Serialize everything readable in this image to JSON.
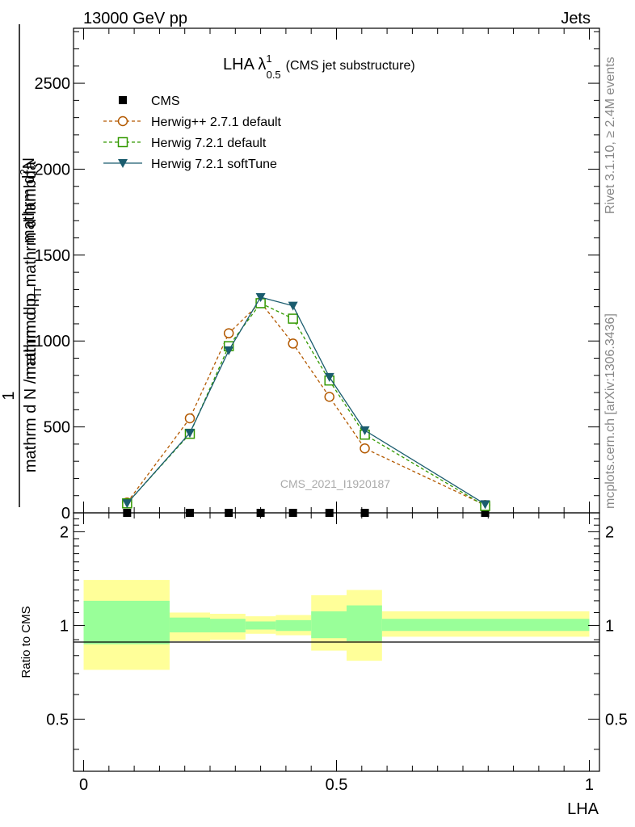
{
  "header": {
    "left": "13000 GeV pp",
    "right": "Jets"
  },
  "side": {
    "rivet": "Rivet 3.1.10, ≥ 2.4M events",
    "mcplots": "mcplots.cern.ch [arXiv:1306.3436]"
  },
  "chart_data": {
    "type": "line",
    "title": {
      "main": "LHA λ",
      "sup": "1",
      "sub": "0.5",
      "note": "(CMS jet substructure)"
    },
    "watermark": "CMS_2021_I1920187",
    "xlabel": "LHA",
    "ylabel": {
      "numerator": "1",
      "denominator": "mathrm d N / mathrm d p",
      "denominator_sub": "T",
      "top_numerator": "mathrm d",
      "top_numerator_sup": "2",
      "top_numerator_rest": "N",
      "top_denominator": "mathrm d p",
      "top_denominator_sub": "T",
      "top_denominator_rest": " mathrm d lambda"
    },
    "xlim": [
      -0.02,
      1.02
    ],
    "ylim": [
      0,
      2820
    ],
    "x_ticks": [
      "0",
      "0.5",
      "1"
    ],
    "y_ticks": [
      "0",
      "500",
      "1000",
      "1500",
      "2000",
      "2500"
    ],
    "legend_position": "top-left",
    "series": [
      {
        "name": "CMS",
        "color": "#000000",
        "marker": "square",
        "x": [
          0.086,
          0.21,
          0.287,
          0.35,
          0.414,
          0.486,
          0.556,
          0.794
        ],
        "y": [
          0,
          0,
          0,
          0,
          0,
          0,
          0,
          0
        ]
      },
      {
        "name": "Herwig++ 2.7.1 default",
        "color": "#b35900",
        "marker": "circle",
        "x": [
          0.086,
          0.21,
          0.287,
          0.35,
          0.414,
          0.486,
          0.556,
          0.794
        ],
        "y": [
          60,
          550,
          1045,
          1225,
          985,
          675,
          375,
          45
        ]
      },
      {
        "name": "Herwig 7.2.1 default",
        "color": "#339900",
        "marker": "square-open",
        "x": [
          0.086,
          0.21,
          0.287,
          0.35,
          0.414,
          0.486,
          0.556,
          0.794
        ],
        "y": [
          55,
          460,
          970,
          1220,
          1130,
          770,
          455,
          40
        ]
      },
      {
        "name": "Herwig 7.2.1 softTune",
        "color": "#1a5c6e",
        "marker": "triangle-down",
        "x": [
          0.086,
          0.21,
          0.287,
          0.35,
          0.414,
          0.486,
          0.556,
          0.794
        ],
        "y": [
          55,
          465,
          945,
          1255,
          1205,
          790,
          480,
          50
        ]
      }
    ],
    "ratio": {
      "ylabel": "Ratio to CMS",
      "ylim": [
        0.34,
        2.3
      ],
      "y_ticks": [
        "0.5",
        "1",
        "2"
      ],
      "bins": [
        {
          "x0": 0.0,
          "x1": 0.17,
          "y_lo": 0.72,
          "y_hi": 1.4,
          "g_lo": 0.87,
          "g_hi": 1.2
        },
        {
          "x0": 0.17,
          "x1": 0.25,
          "y_lo": 0.89,
          "y_hi": 1.1,
          "g_lo": 0.95,
          "g_hi": 1.06
        },
        {
          "x0": 0.25,
          "x1": 0.32,
          "y_lo": 0.9,
          "y_hi": 1.09,
          "g_lo": 0.95,
          "g_hi": 1.05
        },
        {
          "x0": 0.32,
          "x1": 0.38,
          "y_lo": 0.94,
          "y_hi": 1.07,
          "g_lo": 0.97,
          "g_hi": 1.03
        },
        {
          "x0": 0.38,
          "x1": 0.45,
          "y_lo": 0.93,
          "y_hi": 1.08,
          "g_lo": 0.96,
          "g_hi": 1.04
        },
        {
          "x0": 0.45,
          "x1": 0.52,
          "y_lo": 0.83,
          "y_hi": 1.25,
          "g_lo": 0.91,
          "g_hi": 1.11
        },
        {
          "x0": 0.52,
          "x1": 0.59,
          "y_lo": 0.77,
          "y_hi": 1.3,
          "g_lo": 0.89,
          "g_hi": 1.16
        },
        {
          "x0": 0.59,
          "x1": 1.0,
          "y_lo": 0.92,
          "y_hi": 1.11,
          "g_lo": 0.96,
          "g_hi": 1.05
        }
      ]
    }
  },
  "colors": {
    "band_yellow": "#ffff99",
    "band_green": "#99ff99"
  }
}
